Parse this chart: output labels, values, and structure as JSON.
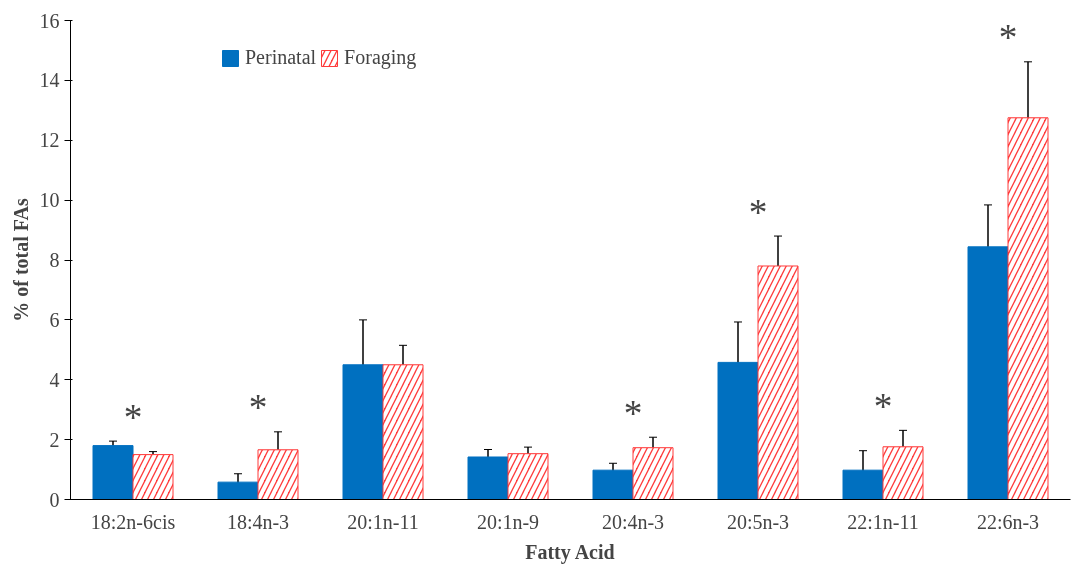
{
  "chart_data": {
    "type": "bar",
    "xlabel": "Fatty Acid",
    "ylabel": "% of total FAs",
    "categories": [
      "18:2n-6cis",
      "18:4n-3",
      "20:1n-11",
      "20:1n-9",
      "20:4n-3",
      "20:5n-3",
      "22:1n-11",
      "22:6n-3"
    ],
    "series": [
      {
        "name": "Perinatal",
        "color": "#0070c0",
        "values": [
          1.8,
          0.58,
          4.5,
          1.42,
          0.98,
          4.58,
          0.98,
          8.44
        ],
        "errors": [
          0.15,
          0.28,
          1.5,
          0.25,
          0.23,
          1.35,
          0.65,
          1.4
        ]
      },
      {
        "name": "Foraging",
        "color": "#ff3b3b",
        "values": [
          1.5,
          1.66,
          4.5,
          1.53,
          1.73,
          7.8,
          1.76,
          12.75
        ],
        "errors": [
          0.1,
          0.6,
          0.65,
          0.22,
          0.35,
          1.0,
          0.55,
          1.87
        ]
      }
    ],
    "annotations": [
      {
        "text": "*",
        "x": "18:2n-6cis",
        "y": 1.5
      },
      {
        "text": "*",
        "x": "18:4n-3",
        "y": 1.66
      },
      {
        "text": "*",
        "x": "20:4n-3",
        "y": 1.73
      },
      {
        "text": "*",
        "x": "20:5n-3",
        "y": 7.8
      },
      {
        "text": "*",
        "x": "22:1n-11",
        "y": 1.76
      },
      {
        "text": "*",
        "x": "22:6n-3",
        "y": 12.75
      }
    ],
    "ylim": [
      0,
      16
    ],
    "yticks": [
      0,
      2,
      4,
      6,
      8,
      10,
      12,
      14,
      16
    ],
    "grid": false,
    "legend": "top"
  }
}
